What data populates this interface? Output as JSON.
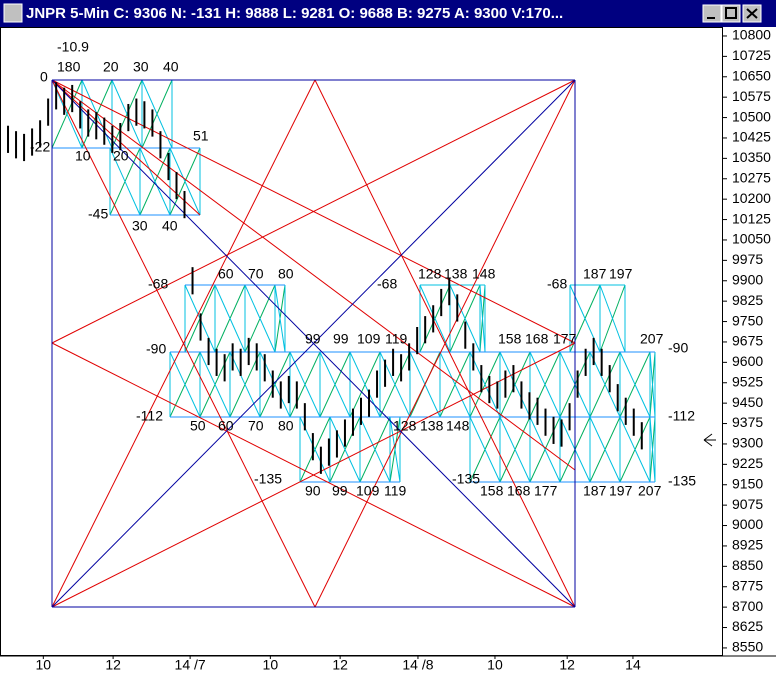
{
  "window": {
    "title": "JNPR 5-Min C: 9306 N: -131 H: 9888 L: 9281 O: 9688 B: 9275 A: 9300 V:170..."
  },
  "chart_data": {
    "type": "hilo",
    "x": [
      1,
      2,
      3,
      4,
      5,
      6,
      7,
      8,
      9,
      10,
      11,
      12,
      13,
      14,
      15,
      16,
      17,
      18,
      19,
      20,
      21,
      22,
      23,
      24,
      25,
      26,
      27,
      28,
      29,
      30,
      31,
      32,
      33,
      34,
      35,
      36,
      37,
      38,
      39,
      40,
      41,
      42,
      43,
      44,
      45,
      46,
      47,
      48,
      49,
      50,
      51,
      52,
      53,
      54,
      55,
      56,
      57,
      58,
      59,
      60,
      61,
      62,
      63,
      64,
      65,
      66,
      67,
      68,
      69,
      70,
      71,
      72,
      73,
      74,
      75,
      76,
      77,
      78,
      79,
      80
    ],
    "high": [
      10470,
      10450,
      10440,
      10460,
      10490,
      10570,
      10630,
      10610,
      10620,
      10560,
      10530,
      10520,
      10500,
      10470,
      10480,
      10550,
      10570,
      10560,
      10530,
      10450,
      10370,
      10300,
      10230,
      9950,
      9780,
      9690,
      9650,
      9630,
      9670,
      9650,
      9690,
      9670,
      9630,
      9570,
      9530,
      9550,
      9530,
      9450,
      9340,
      9290,
      9320,
      9350,
      9390,
      9430,
      9470,
      9500,
      9570,
      9610,
      9650,
      9630,
      9670,
      9730,
      9770,
      9810,
      9870,
      9910,
      9850,
      9750,
      9670,
      9590,
      9550,
      9530,
      9570,
      9590,
      9530,
      9490,
      9470,
      9430,
      9400,
      9390,
      9450,
      9570,
      9650,
      9690,
      9650,
      9590,
      9520,
      9470,
      9430,
      9380
    ],
    "low": [
      10370,
      10350,
      10340,
      10360,
      10390,
      10470,
      10530,
      10510,
      10520,
      10460,
      10430,
      10420,
      10400,
      10370,
      10380,
      10450,
      10470,
      10460,
      10430,
      10350,
      10270,
      10200,
      10130,
      9850,
      9680,
      9590,
      9550,
      9530,
      9570,
      9550,
      9590,
      9570,
      9530,
      9470,
      9430,
      9450,
      9430,
      9350,
      9240,
      9190,
      9220,
      9250,
      9290,
      9330,
      9370,
      9400,
      9470,
      9510,
      9550,
      9530,
      9570,
      9630,
      9670,
      9710,
      9770,
      9810,
      9750,
      9650,
      9570,
      9490,
      9450,
      9430,
      9470,
      9490,
      9430,
      9390,
      9370,
      9330,
      9300,
      9290,
      9350,
      9470,
      9550,
      9590,
      9550,
      9490,
      9420,
      9370,
      9330,
      9280
    ],
    "color": "#000000",
    "xlim": [
      0,
      90
    ],
    "xticks": [
      {
        "value": 5.4,
        "label": "10"
      },
      {
        "value": 14.1,
        "label": "12"
      },
      {
        "value": 23.7,
        "label": "14 /7"
      },
      {
        "value": 33.7,
        "label": "10"
      },
      {
        "value": 42.4,
        "label": "12"
      },
      {
        "value": 52.1,
        "label": "14 /8"
      },
      {
        "value": 61.7,
        "label": "10"
      },
      {
        "value": 70.7,
        "label": "12"
      },
      {
        "value": 78.9,
        "label": "14"
      }
    ],
    "ylim": [
      8524,
      10833
    ],
    "yticks": [
      10800,
      10725,
      10650,
      10575,
      10500,
      10425,
      10350,
      10275,
      10200,
      10125,
      10050,
      9975,
      9900,
      9825,
      9750,
      9675,
      9600,
      9525,
      9450,
      9375,
      9300,
      9225,
      9150,
      9075,
      9000,
      8925,
      8850,
      8775,
      8700,
      8625,
      8550
    ],
    "annotations": [
      "-10.9",
      "180",
      "20",
      "30",
      "40",
      "0",
      "-22",
      "10",
      "20",
      "51",
      "-45",
      "30",
      "40",
      "-68",
      "60",
      "70",
      "80",
      "-90",
      "-112",
      "50",
      "60",
      "70",
      "80",
      "99",
      "99",
      "109",
      "119",
      "-68",
      "128",
      "138",
      "148",
      "158",
      "168",
      "177",
      "-68",
      "187",
      "197",
      "207",
      "-90",
      "-112",
      "-135",
      "128",
      "138",
      "148",
      "-135",
      "90",
      "99",
      "109",
      "119",
      "-135",
      "158",
      "168",
      "177",
      "187",
      "197",
      "207"
    ]
  }
}
